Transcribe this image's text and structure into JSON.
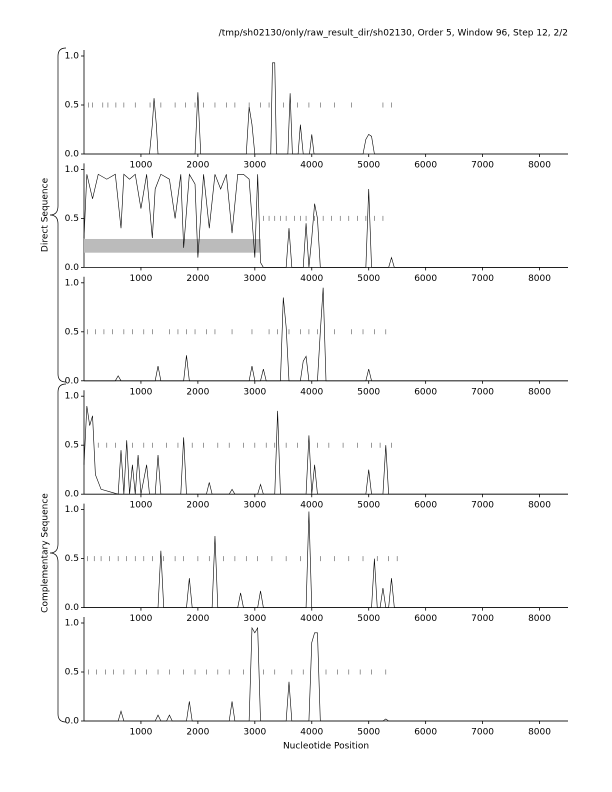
{
  "title": "/tmp/sh02130/only/raw_result_dir/sh02130, Order 5, Window 96, Step 12, 2/2",
  "x_label": "Nucleotide Position",
  "groups": [
    {
      "label": "Direct Sequence"
    },
    {
      "label": "Complementary Sequence"
    }
  ],
  "chart_data": [
    {
      "type": "line",
      "xlim": [
        0,
        8500
      ],
      "ylim": [
        0,
        1
      ],
      "xticks": [
        1000,
        2000,
        3000,
        4000,
        5000,
        6000,
        7000,
        8000
      ],
      "yticks": [
        {
          "value": 0,
          "label": "0.0"
        },
        {
          "value": 0.5,
          "label": "0.5"
        },
        {
          "value": 1,
          "label": "1.0"
        }
      ],
      "x": [
        0,
        1150,
        1200,
        1230,
        1270,
        1300,
        1950,
        2000,
        2050,
        2850,
        2900,
        2950,
        3000,
        3280,
        3310,
        3350,
        3380,
        3580,
        3620,
        3660,
        3760,
        3800,
        3850,
        3960,
        4000,
        4040,
        4900,
        4950,
        5000,
        5050,
        5100,
        8500
      ],
      "values": [
        0,
        0,
        0.3,
        0.57,
        0.3,
        0,
        0,
        0.63,
        0,
        0,
        0.48,
        0.3,
        0,
        0,
        0.93,
        0.93,
        0,
        0,
        0.62,
        0,
        0,
        0.3,
        0,
        0,
        0.2,
        0,
        0,
        0.15,
        0.2,
        0.18,
        0,
        0
      ],
      "marks_y": 0.5,
      "marks_x": [
        80,
        150,
        330,
        420,
        560,
        700,
        900,
        1160,
        1350,
        1600,
        1780,
        1950,
        2100,
        2300,
        2500,
        2650,
        2900,
        3100,
        3250,
        3500,
        3750,
        3950,
        4150,
        4400,
        4700,
        5250,
        5400
      ]
    },
    {
      "type": "line",
      "xlim": [
        0,
        8500
      ],
      "ylim": [
        0,
        1
      ],
      "xticks": [
        1000,
        2000,
        3000,
        4000,
        5000,
        6000,
        7000,
        8000
      ],
      "yticks": [
        {
          "value": 0,
          "label": "0.0"
        },
        {
          "value": 0.5,
          "label": "0.5"
        },
        {
          "value": 1,
          "label": "1.0"
        }
      ],
      "x": [
        0,
        50,
        150,
        250,
        400,
        550,
        650,
        700,
        800,
        900,
        1000,
        1100,
        1200,
        1250,
        1350,
        1500,
        1600,
        1700,
        1750,
        1850,
        1950,
        2000,
        2100,
        2200,
        2300,
        2400,
        2500,
        2600,
        2700,
        2800,
        2900,
        3000,
        3050,
        3100,
        3150,
        3550,
        3600,
        3650,
        3850,
        3900,
        3950,
        4000,
        4050,
        4100,
        4150,
        4950,
        5000,
        5050,
        5350,
        5400,
        5450,
        8500
      ],
      "values": [
        0.3,
        0.95,
        0.7,
        0.95,
        0.9,
        0.95,
        0.4,
        0.95,
        0.9,
        0.95,
        0.6,
        0.95,
        0.3,
        0.8,
        0.95,
        0.9,
        0.5,
        0.95,
        0.2,
        0.95,
        0.85,
        0.1,
        0.95,
        0.4,
        0.95,
        0.8,
        0.95,
        0.35,
        0.95,
        0.95,
        0.9,
        0.1,
        0.95,
        0.05,
        0,
        0,
        0.4,
        0,
        0,
        0.45,
        0,
        0.3,
        0.65,
        0.5,
        0,
        0,
        0.8,
        0,
        0,
        0.1,
        0,
        0
      ],
      "highlight": {
        "x": [
          0,
          3100
        ],
        "y": [
          0.15,
          0.29
        ]
      },
      "marks_y": 0.5,
      "marks_x": [
        3150,
        3250,
        3350,
        3450,
        3550,
        3700,
        3800,
        3900,
        4050,
        4200,
        4350,
        4500,
        4650,
        4800,
        4950,
        5100,
        5250
      ]
    },
    {
      "type": "line",
      "xlim": [
        0,
        8500
      ],
      "ylim": [
        0,
        1
      ],
      "xticks": [
        1000,
        2000,
        3000,
        4000,
        5000,
        6000,
        7000,
        8000
      ],
      "yticks": [
        {
          "value": 0,
          "label": "0.0"
        },
        {
          "value": 0.5,
          "label": "0.5"
        },
        {
          "value": 1,
          "label": "1.0"
        }
      ],
      "x": [
        0,
        550,
        600,
        650,
        1250,
        1300,
        1350,
        1750,
        1800,
        1850,
        2900,
        2950,
        3000,
        3100,
        3150,
        3200,
        3450,
        3500,
        3550,
        3600,
        3800,
        3850,
        3900,
        3950,
        4100,
        4150,
        4200,
        4250,
        4950,
        5000,
        5050,
        8500
      ],
      "values": [
        0,
        0,
        0.05,
        0,
        0,
        0.15,
        0,
        0,
        0.26,
        0,
        0,
        0.15,
        0,
        0,
        0.12,
        0,
        0,
        0.85,
        0.55,
        0,
        0,
        0.2,
        0.25,
        0,
        0,
        0.5,
        0.95,
        0,
        0,
        0.12,
        0,
        0
      ],
      "marks_y": 0.5,
      "marks_x": [
        60,
        200,
        350,
        500,
        700,
        850,
        1050,
        1200,
        1500,
        1650,
        1800,
        1950,
        2150,
        2300,
        2600,
        2950,
        3250,
        3400,
        3600,
        3800,
        3950,
        4100,
        4400,
        4700,
        4900,
        5100,
        5300
      ]
    },
    {
      "type": "line",
      "xlim": [
        0,
        8500
      ],
      "ylim": [
        0,
        1
      ],
      "xticks": [
        1000,
        2000,
        3000,
        4000,
        5000,
        6000,
        7000,
        8000
      ],
      "yticks": [
        {
          "value": 0,
          "label": "0.0"
        },
        {
          "value": 0.5,
          "label": "0.5"
        },
        {
          "value": 1,
          "label": "1.0"
        }
      ],
      "x": [
        0,
        50,
        100,
        150,
        200,
        300,
        600,
        650,
        700,
        750,
        800,
        850,
        900,
        950,
        1000,
        1100,
        1150,
        1250,
        1300,
        1350,
        1700,
        1750,
        1800,
        2150,
        2200,
        2250,
        2550,
        2600,
        2650,
        3050,
        3100,
        3150,
        3350,
        3400,
        3450,
        3900,
        3950,
        4000,
        4050,
        4100,
        4950,
        5000,
        5050,
        5250,
        5300,
        5350,
        8500
      ],
      "values": [
        0.3,
        0.9,
        0.7,
        0.8,
        0.2,
        0.05,
        0,
        0.45,
        0,
        0.55,
        0,
        0.3,
        0,
        0.4,
        0,
        0.3,
        0,
        0,
        0.4,
        0,
        0,
        0.58,
        0,
        0,
        0.12,
        0,
        0,
        0.05,
        0,
        0,
        0.1,
        0,
        0,
        0.85,
        0,
        0,
        0.6,
        0,
        0.3,
        0,
        0,
        0.25,
        0,
        0,
        0.5,
        0,
        0
      ],
      "marks_y": 0.5,
      "marks_x": [
        250,
        400,
        550,
        850,
        1050,
        1200,
        1450,
        1650,
        1900,
        2100,
        2350,
        2550,
        2800,
        3000,
        3200,
        3350,
        3550,
        3750,
        4100,
        4300,
        4550,
        4800,
        5050,
        5200,
        5400
      ]
    },
    {
      "type": "line",
      "xlim": [
        0,
        8500
      ],
      "ylim": [
        0,
        1
      ],
      "xticks": [
        1000,
        2000,
        3000,
        4000,
        5000,
        6000,
        7000,
        8000
      ],
      "yticks": [
        {
          "value": 0,
          "label": "0.0"
        },
        {
          "value": 0.5,
          "label": "0.5"
        },
        {
          "value": 1,
          "label": "1.0"
        }
      ],
      "x": [
        0,
        1300,
        1350,
        1400,
        1800,
        1850,
        1900,
        2250,
        2300,
        2350,
        2700,
        2750,
        2800,
        3050,
        3100,
        3150,
        3900,
        3950,
        4000,
        5050,
        5100,
        5150,
        5200,
        5250,
        5300,
        5350,
        5400,
        5450,
        8500
      ],
      "values": [
        0,
        0,
        0.58,
        0,
        0,
        0.3,
        0,
        0,
        0.73,
        0,
        0,
        0.15,
        0,
        0,
        0.17,
        0,
        0,
        0.98,
        0,
        0,
        0.5,
        0,
        0,
        0.2,
        0,
        0,
        0.3,
        0,
        0
      ],
      "marks_y": 0.5,
      "marks_x": [
        60,
        180,
        300,
        450,
        600,
        750,
        900,
        1050,
        1200,
        1400,
        1600,
        1750,
        2000,
        2200,
        2450,
        2650,
        2850,
        3050,
        3300,
        3550,
        3800,
        4150,
        4400,
        4650,
        4900,
        5150,
        5350,
        5500
      ]
    },
    {
      "type": "line",
      "xlim": [
        0,
        8500
      ],
      "ylim": [
        0,
        1
      ],
      "xticks": [
        1000,
        2000,
        3000,
        4000,
        5000,
        6000,
        7000,
        8000
      ],
      "yticks": [
        {
          "value": 0,
          "label": "0.0"
        },
        {
          "value": 0.5,
          "label": "0.5"
        },
        {
          "value": 1,
          "label": "1.0"
        }
      ],
      "x": [
        0,
        600,
        650,
        700,
        1250,
        1300,
        1350,
        1450,
        1500,
        1550,
        1800,
        1850,
        1900,
        2550,
        2600,
        2650,
        2900,
        2950,
        3000,
        3050,
        3100,
        3550,
        3600,
        3650,
        3950,
        4000,
        4050,
        4100,
        4150,
        5250,
        5300,
        5350,
        8500
      ],
      "values": [
        0,
        0,
        0.1,
        0,
        0,
        0.06,
        0,
        0,
        0.06,
        0,
        0,
        0.2,
        0,
        0,
        0.2,
        0,
        0,
        0.95,
        0.9,
        0.95,
        0,
        0,
        0.4,
        0,
        0,
        0.8,
        0.9,
        0.9,
        0,
        0,
        0.02,
        0,
        0
      ],
      "marks_y": 0.5,
      "marks_x": [
        80,
        220,
        380,
        520,
        700,
        900,
        1100,
        1300,
        1500,
        1750,
        1950,
        2150,
        2350,
        2550,
        2800,
        3150,
        3350,
        3650,
        3850,
        4250,
        4450,
        4650,
        4850,
        5050,
        5300
      ]
    }
  ]
}
